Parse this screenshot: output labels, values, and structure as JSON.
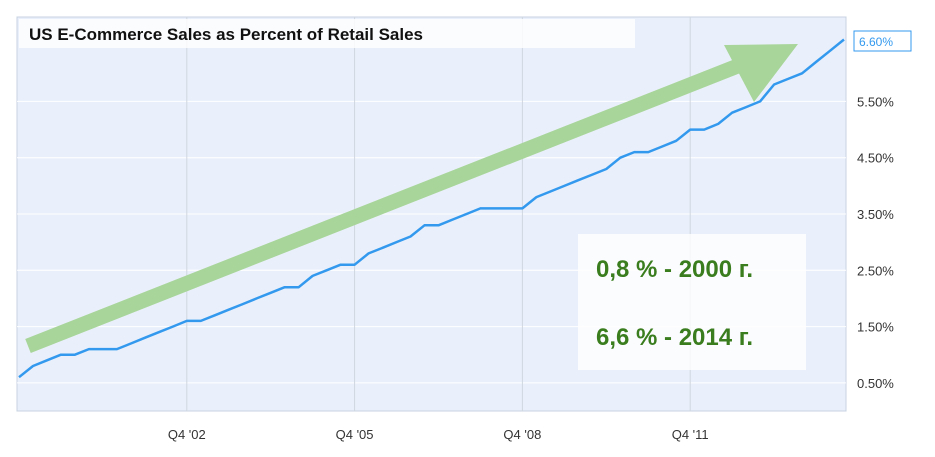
{
  "chart_data": {
    "type": "line",
    "title": "US E-Commerce Sales as Percent of Retail Sales",
    "xlabel": "",
    "ylabel": "",
    "x_tick_labels": [
      "Q4 '02",
      "Q4 '05",
      "Q4 '08",
      "Q4 '11"
    ],
    "y_tick_labels": [
      "0.50%",
      "1.50%",
      "2.50%",
      "3.50%",
      "4.50%",
      "5.50%"
    ],
    "ylim": [
      0,
      7.0
    ],
    "grid": true,
    "last_value_label": "6.60%",
    "series": [
      {
        "color": "#3399ee",
        "x": [
          "Q4 '99",
          "Q1 '00",
          "Q2 '00",
          "Q3 '00",
          "Q4 '00",
          "Q1 '01",
          "Q2 '01",
          "Q3 '01",
          "Q4 '01",
          "Q1 '02",
          "Q2 '02",
          "Q3 '02",
          "Q4 '02",
          "Q1 '03",
          "Q2 '03",
          "Q3 '03",
          "Q4 '03",
          "Q1 '04",
          "Q2 '04",
          "Q3 '04",
          "Q4 '04",
          "Q1 '05",
          "Q2 '05",
          "Q3 '05",
          "Q4 '05",
          "Q1 '06",
          "Q2 '06",
          "Q3 '06",
          "Q4 '06",
          "Q1 '07",
          "Q2 '07",
          "Q3 '07",
          "Q4 '07",
          "Q1 '08",
          "Q2 '08",
          "Q3 '08",
          "Q4 '08",
          "Q1 '09",
          "Q2 '09",
          "Q3 '09",
          "Q4 '09",
          "Q1 '10",
          "Q2 '10",
          "Q3 '10",
          "Q4 '10",
          "Q1 '11",
          "Q2 '11",
          "Q3 '11",
          "Q4 '11",
          "Q1 '12",
          "Q2 '12",
          "Q3 '12",
          "Q4 '12",
          "Q1 '13",
          "Q2 '13",
          "Q3 '13",
          "Q4 '13",
          "Q1 '14",
          "Q2 '14",
          "Q3 '14"
        ],
        "values": [
          0.6,
          0.8,
          0.9,
          1.0,
          1.0,
          1.1,
          1.1,
          1.1,
          1.2,
          1.3,
          1.4,
          1.5,
          1.6,
          1.6,
          1.7,
          1.8,
          1.9,
          2.0,
          2.1,
          2.2,
          2.2,
          2.4,
          2.5,
          2.6,
          2.6,
          2.8,
          2.9,
          3.0,
          3.1,
          3.3,
          3.3,
          3.4,
          3.5,
          3.6,
          3.6,
          3.6,
          3.6,
          3.8,
          3.9,
          4.0,
          4.1,
          4.2,
          4.3,
          4.5,
          4.6,
          4.6,
          4.7,
          4.8,
          5.0,
          5.0,
          5.1,
          5.3,
          5.4,
          5.5,
          5.8,
          5.9,
          6.0,
          6.2,
          6.4,
          6.6
        ]
      }
    ]
  },
  "annotations": {
    "line1": "0,8 % - 2000 г.",
    "line2": "6,6 % - 2014 г.",
    "arrow_color": "#a8d59a",
    "text_color": "#3a7d1e"
  }
}
